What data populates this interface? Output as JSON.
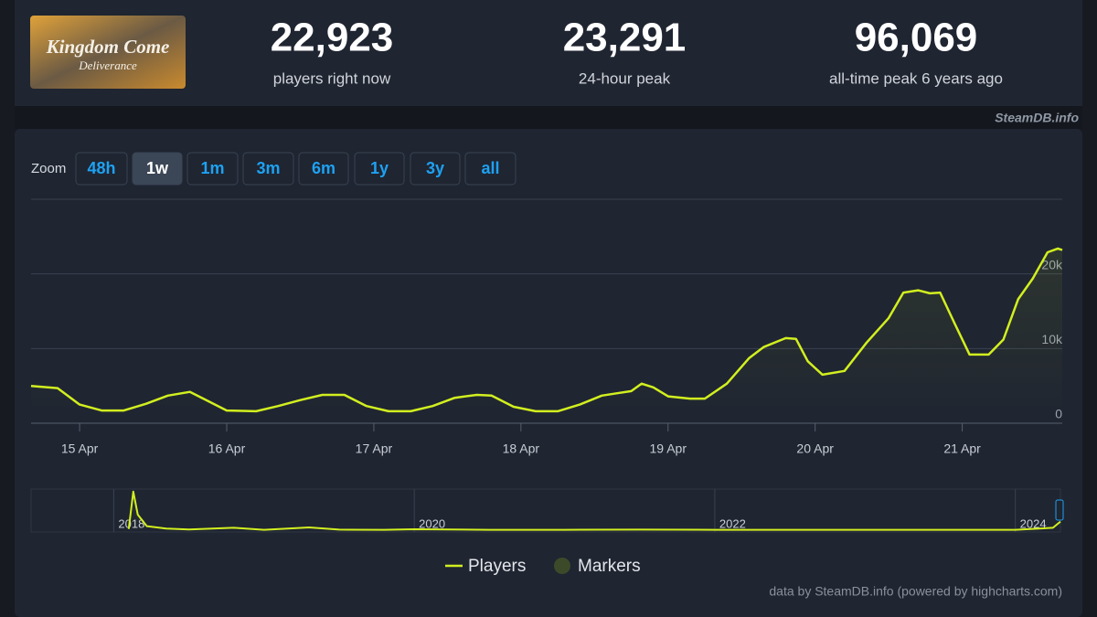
{
  "header": {
    "logo_text": [
      "Kingdom Come",
      "Deliverance"
    ],
    "stats": [
      {
        "value": "22,923",
        "label": "players right now"
      },
      {
        "value": "23,291",
        "label": "24-hour peak"
      },
      {
        "value": "96,069",
        "label": "all-time peak 6 years ago"
      }
    ]
  },
  "watermark": "SteamDB.info",
  "zoom": {
    "label": "Zoom",
    "buttons": [
      "48h",
      "1w",
      "1m",
      "3m",
      "6m",
      "1y",
      "3y",
      "all"
    ],
    "active": 1
  },
  "chart_data": [
    {
      "type": "line",
      "x": [
        14.67,
        14.85,
        15.0,
        15.15,
        15.3,
        15.45,
        15.6,
        15.75,
        15.85,
        16.0,
        16.2,
        16.35,
        16.5,
        16.65,
        16.8,
        16.95,
        17.1,
        17.25,
        17.4,
        17.55,
        17.7,
        17.8,
        17.95,
        18.1,
        18.25,
        18.4,
        18.55,
        18.65,
        18.75,
        18.82,
        18.9,
        19.0,
        19.15,
        19.25,
        19.4,
        19.55,
        19.65,
        19.8,
        19.87,
        19.95,
        20.05,
        20.2,
        20.35,
        20.5,
        20.6,
        20.7,
        20.78,
        20.85,
        20.95,
        21.05,
        21.18,
        21.28,
        21.38,
        21.48,
        21.58,
        21.65,
        21.68
      ],
      "series": [
        {
          "name": "Players",
          "color": "#d2ef1f",
          "values": [
            5000,
            4700,
            2500,
            1700,
            1700,
            2600,
            3700,
            4200,
            3200,
            1700,
            1600,
            2300,
            3100,
            3800,
            3800,
            2300,
            1600,
            1600,
            2300,
            3400,
            3800,
            3700,
            2200,
            1600,
            1600,
            2500,
            3700,
            4000,
            4300,
            5300,
            4800,
            3600,
            3300,
            3300,
            5300,
            8700,
            10200,
            11400,
            11300,
            8300,
            6500,
            7000,
            10800,
            14100,
            17500,
            17800,
            17400,
            17500,
            13300,
            9200,
            9200,
            11200,
            16600,
            19400,
            22900,
            23400,
            23200
          ]
        }
      ],
      "markers": {
        "name": "Markers",
        "color": "#3d4a2a"
      },
      "xlim": [
        14.67,
        21.68
      ],
      "xticks": [
        {
          "value": 15,
          "label": "15 Apr"
        },
        {
          "value": 16,
          "label": "16 Apr"
        },
        {
          "value": 17,
          "label": "17 Apr"
        },
        {
          "value": 18,
          "label": "18 Apr"
        },
        {
          "value": 19,
          "label": "19 Apr"
        },
        {
          "value": 20,
          "label": "20 Apr"
        },
        {
          "value": 21,
          "label": "21 Apr"
        }
      ],
      "ylim": [
        0,
        30000
      ],
      "yticks": [
        0,
        {
          "value": 10000,
          "label": "10k"
        },
        {
          "value": 20000,
          "label": "20k"
        }
      ],
      "grid": true
    },
    {
      "type": "line",
      "x": [
        2018.1,
        2018.13,
        2018.16,
        2018.22,
        2018.35,
        2018.5,
        2018.8,
        2019.0,
        2019.3,
        2019.5,
        2019.8,
        2020.0,
        2020.5,
        2021.0,
        2021.5,
        2022.0,
        2022.5,
        2023.0,
        2023.5,
        2024.0,
        2024.25,
        2024.3
      ],
      "series": [
        {
          "name": "Players",
          "color": "#d2ef1f",
          "values": [
            5000,
            96000,
            40000,
            12000,
            6000,
            4000,
            8000,
            3000,
            9000,
            3500,
            3000,
            4500,
            3000,
            3000,
            3500,
            3000,
            3000,
            3000,
            3000,
            3000,
            8000,
            23000
          ]
        }
      ],
      "xlim": [
        2017.45,
        2024.3
      ],
      "xticks": [
        2018,
        2020,
        2022,
        2024
      ],
      "ylim": [
        0,
        100000
      ],
      "grid": true
    }
  ],
  "credits": "data by SteamDB.info (powered by highcharts.com)"
}
